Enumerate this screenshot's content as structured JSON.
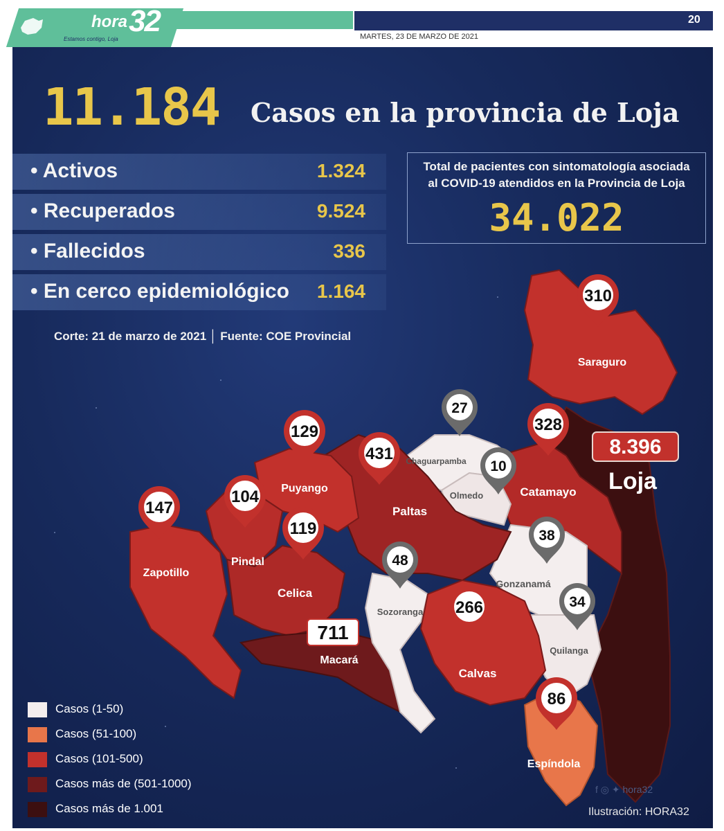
{
  "masthead": {
    "logo_hora": "hora",
    "logo_number": "32",
    "tagline": "Estamos contigo, Loja",
    "page_number": "20",
    "date": "MARTES, 23 DE MARZO DE 2021"
  },
  "headline": {
    "total_cases": "11.184",
    "title": "Casos en la provincia de Loja"
  },
  "stats": [
    {
      "label": "• Activos",
      "value": "1.324"
    },
    {
      "label": "• Recuperados",
      "value": "9.524"
    },
    {
      "label": "• Fallecidos",
      "value": "336"
    },
    {
      "label": "• En cerco epidemiológico",
      "value": "1.164"
    }
  ],
  "total_box": {
    "line1": "Total de pacientes con sintomatología asociada",
    "line2": "al COVID-19 atendidos en la Provincia de Loja",
    "number": "34.022"
  },
  "footnote": "Corte: 21 de marzo de 2021 │ Fuente: COE Provincial",
  "cantons": [
    {
      "name": "Saraguro",
      "cases": "310",
      "category": "101-500"
    },
    {
      "name": "Loja",
      "cases": "8.396",
      "category": "1.001+"
    },
    {
      "name": "Chaguarpamba",
      "cases": "27",
      "category": "1-50"
    },
    {
      "name": "Olmedo",
      "cases": "10",
      "category": "1-50"
    },
    {
      "name": "Catamayo",
      "cases": "328",
      "category": "101-500"
    },
    {
      "name": "Paltas",
      "cases": "431",
      "category": "101-500"
    },
    {
      "name": "Puyango",
      "cases": "129",
      "category": "101-500"
    },
    {
      "name": "Pindal",
      "cases": "104",
      "category": "101-500"
    },
    {
      "name": "Zapotillo",
      "cases": "147",
      "category": "101-500"
    },
    {
      "name": "Celica",
      "cases": "119",
      "category": "101-500"
    },
    {
      "name": "Sozoranga",
      "cases": "48",
      "category": "1-50"
    },
    {
      "name": "Gonzanamá",
      "cases": "38",
      "category": "1-50"
    },
    {
      "name": "Quilanga",
      "cases": "34",
      "category": "1-50"
    },
    {
      "name": "Macará",
      "cases": "711",
      "category": "501-1000"
    },
    {
      "name": "Calvas",
      "cases": "266",
      "category": "101-500"
    },
    {
      "name": "Espíndola",
      "cases": "86",
      "category": "51-100"
    }
  ],
  "legend": [
    {
      "label": "Casos (1-50)",
      "color": "#f4eeee"
    },
    {
      "label": "Casos (51-100)",
      "color": "#e8764a"
    },
    {
      "label": "Casos (101-500)",
      "color": "#c2312c"
    },
    {
      "label": "Casos más de (501-1000)",
      "color": "#6e1a1c"
    },
    {
      "label": "Casos más de 1.001",
      "color": "#3c0f10"
    }
  ],
  "social": "hora32",
  "credit": "Ilustración: HORA32"
}
